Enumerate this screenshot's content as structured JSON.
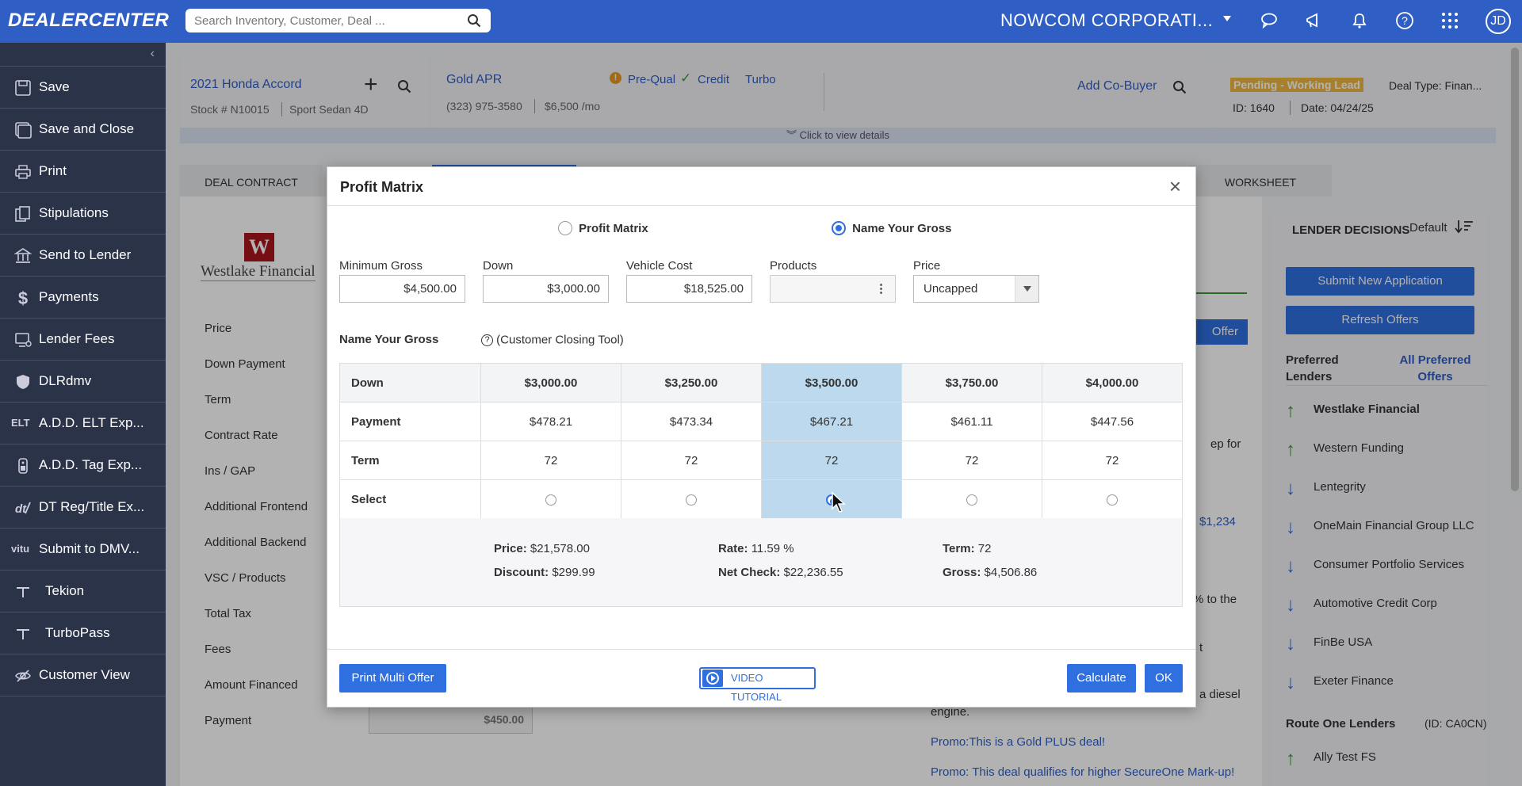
{
  "topbar": {
    "brand": "DEALERCENTER",
    "search_placeholder": "Search Inventory, Customer, Deal ...",
    "company": "NOWCOM CORPORATI...",
    "avatar_initials": "JD"
  },
  "sidebar": {
    "items": [
      {
        "label": "Save"
      },
      {
        "label": "Save and Close"
      },
      {
        "label": "Print"
      },
      {
        "label": "Stipulations"
      },
      {
        "label": "Send to Lender"
      },
      {
        "label": "Payments"
      },
      {
        "label": "Lender Fees"
      },
      {
        "label": "DLRdmv"
      },
      {
        "label": "A.D.D. ELT Exp..."
      },
      {
        "label": "A.D.D. Tag Exp..."
      },
      {
        "label": "DT Reg/Title Ex..."
      },
      {
        "label": "Submit to DMV..."
      },
      {
        "label": "Tekion"
      },
      {
        "label": "TurboPass"
      },
      {
        "label": "Customer View"
      }
    ],
    "elt_text": "ELT",
    "vitu_text": "vitu"
  },
  "vehicle": {
    "title": "2021 Honda Accord",
    "stock": "Stock # N10015",
    "trim": "Sport Sedan 4D"
  },
  "customer": {
    "name": "Gold APR",
    "prequal": "Pre-Qual",
    "credit": "Credit",
    "turbo": "Turbo",
    "phone": "(323) 975-3580",
    "income": "$6,500 /mo",
    "add_cobuyer": "Add Co-Buyer"
  },
  "deal": {
    "status": "Pending - Working Lead",
    "type": "Deal Type: Finan...",
    "id": "ID: 1640",
    "date": "Date: 04/24/25",
    "view_details": "Click to view details"
  },
  "tabs": {
    "deal_contract": "DEAL CONTRACT",
    "worksheet": "WORKSHEET"
  },
  "contract": {
    "lender_logo": "Westlake Financial",
    "fields": [
      "Price",
      "Down Payment",
      "Term",
      "Contract Rate",
      "Ins / GAP",
      "Additional Frontend",
      "Additional Backend",
      "VSC / Products",
      "Total Tax",
      "Fees",
      "Amount Financed",
      "Payment"
    ],
    "payment_value": "$450.00"
  },
  "behind_text": {
    "offer_button": "Offer",
    "line1": "ep for",
    "line2": "$1,234",
    "line3": "% to the",
    "line4": "t",
    "line5": "a diesel",
    "engine": "engine.",
    "promo1": "Promo:This is a Gold PLUS deal!",
    "promo2": "Promo: This deal qualifies for higher SecureOne Mark-up!"
  },
  "lender_panel": {
    "title": "LENDER DECISIONS",
    "sort_label": "Default",
    "submit_new": "Submit New Application",
    "refresh": "Refresh Offers",
    "preferred": "Preferred Lenders",
    "all_preferred": "All Preferred Offers",
    "lenders": [
      {
        "name": "Westlake Financial",
        "dir": "up",
        "bold": true
      },
      {
        "name": "Western Funding",
        "dir": "up",
        "bold": false
      },
      {
        "name": "Lentegrity",
        "dir": "down",
        "bold": false
      },
      {
        "name": "OneMain Financial Group LLC",
        "dir": "down",
        "bold": false
      },
      {
        "name": "Consumer Portfolio Services",
        "dir": "down",
        "bold": false
      },
      {
        "name": "Automotive Credit Corp",
        "dir": "down",
        "bold": false
      },
      {
        "name": "FinBe USA",
        "dir": "down",
        "bold": false
      },
      {
        "name": "Exeter Finance",
        "dir": "down",
        "bold": false
      }
    ],
    "route_one": "Route One Lenders",
    "route_one_id": "(ID: CA0CN)",
    "ally": "Ally Test FS"
  },
  "modal": {
    "title": "Profit Matrix",
    "close": "×",
    "mode_profit_matrix": "Profit Matrix",
    "mode_name_your_gross": "Name Your Gross",
    "selected_mode": "name_your_gross",
    "fields": {
      "min_gross_label": "Minimum Gross",
      "min_gross_value": "$4,500.00",
      "down_label": "Down",
      "down_value": "$3,000.00",
      "vehicle_cost_label": "Vehicle Cost",
      "vehicle_cost_value": "$18,525.00",
      "products_label": "Products",
      "products_value": "",
      "price_label": "Price",
      "price_value": "Uncapped"
    },
    "section_title": "Name Your Gross",
    "closing_tool": "(Customer Closing Tool)",
    "grid": {
      "row_labels": {
        "down": "Down",
        "payment": "Payment",
        "term": "Term",
        "select": "Select"
      },
      "columns": [
        {
          "down": "$3,000.00",
          "payment": "$478.21",
          "term": "72"
        },
        {
          "down": "$3,250.00",
          "payment": "$473.34",
          "term": "72"
        },
        {
          "down": "$3,500.00",
          "payment": "$467.21",
          "term": "72"
        },
        {
          "down": "$3,750.00",
          "payment": "$461.11",
          "term": "72"
        },
        {
          "down": "$4,000.00",
          "payment": "$447.56",
          "term": "72"
        }
      ],
      "selected_index": 2
    },
    "summary": {
      "price_label": "Price:",
      "price": "$21,578.00",
      "rate_label": "Rate:",
      "rate": "11.59 %",
      "term_label": "Term:",
      "term": "72",
      "discount_label": "Discount:",
      "discount": "$299.99",
      "netcheck_label": "Net Check:",
      "netcheck": "$22,236.55",
      "gross_label": "Gross:",
      "gross": "$4,506.86"
    },
    "footer": {
      "print_multi": "Print Multi Offer",
      "video": "VIDEO TUTORIAL",
      "calculate": "Calculate",
      "ok": "OK"
    }
  },
  "colors": {
    "primary": "#2f5ec4",
    "button": "#2f6fe0",
    "sidebar": "#2b3348",
    "selected_col": "#bcd9ee",
    "up_arrow": "#3a9a3a",
    "down_arrow": "#2f6fe0",
    "status_badge": "#f0b840"
  }
}
